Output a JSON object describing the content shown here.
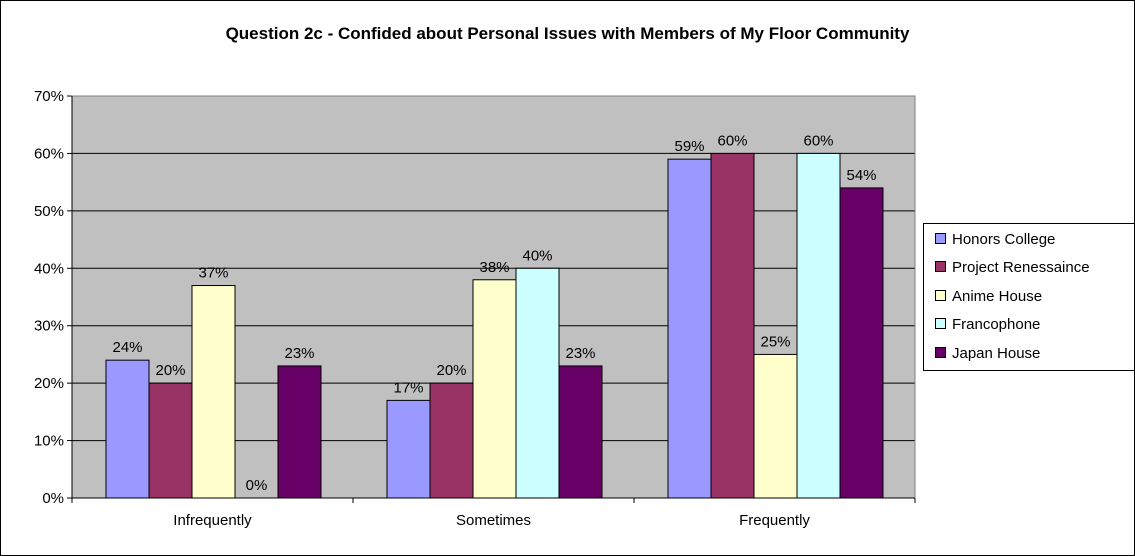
{
  "chart_data": {
    "type": "bar",
    "title": "Question 2c - Confided about Personal Issues with Members of My Floor Community",
    "xlabel": "",
    "ylabel": "",
    "categories": [
      "Infrequently",
      "Sometimes",
      "Frequently"
    ],
    "ylim": [
      0,
      70
    ],
    "y_ticks": [
      "0%",
      "10%",
      "20%",
      "30%",
      "40%",
      "50%",
      "60%",
      "70%"
    ],
    "grid": true,
    "legend_position": "right",
    "plot_background": "#c0c0c0",
    "series": [
      {
        "name": "Honors College",
        "color": "#9999ff",
        "values": [
          24,
          17,
          59
        ],
        "labels": [
          "24%",
          "17%",
          "59%"
        ]
      },
      {
        "name": "Project Renessaince",
        "color": "#993366",
        "values": [
          20,
          20,
          60
        ],
        "labels": [
          "20%",
          "20%",
          "60%"
        ]
      },
      {
        "name": "Anime House",
        "color": "#ffffcc",
        "values": [
          37,
          38,
          25
        ],
        "labels": [
          "37%",
          "38%",
          "25%"
        ]
      },
      {
        "name": "Francophone",
        "color": "#ccffff",
        "values": [
          0,
          40,
          60
        ],
        "labels": [
          "0%",
          "40%",
          "60%"
        ]
      },
      {
        "name": "Japan House",
        "color": "#660066",
        "values": [
          23,
          23,
          54
        ],
        "labels": [
          "23%",
          "23%",
          "54%"
        ]
      }
    ]
  }
}
